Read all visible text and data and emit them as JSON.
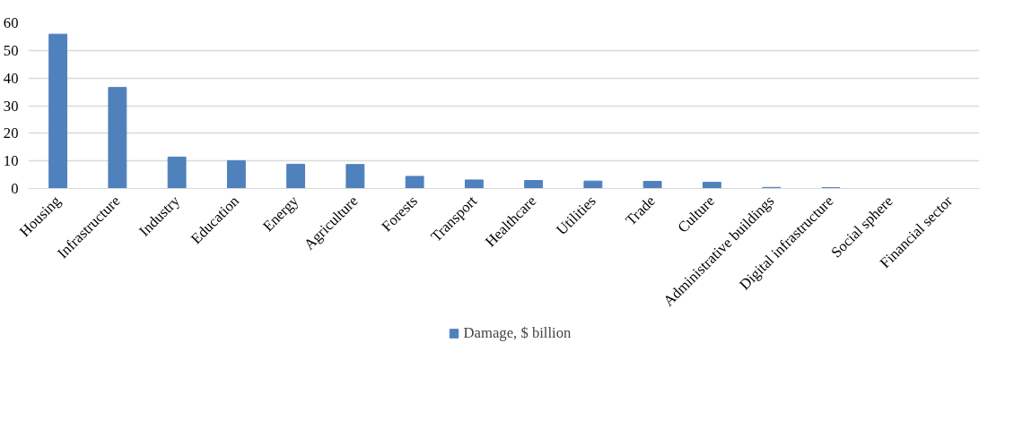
{
  "chart_data": {
    "type": "bar",
    "categories": [
      "Housing",
      "Infrastructure",
      "Industry",
      "Education",
      "Energy",
      "Agriculture",
      "Forests",
      "Transport",
      "Healthcare",
      "Utilities",
      "Trade",
      "Culture",
      "Administrative buildings",
      "Digital infrastructure",
      "Social sphere",
      "Financial sector"
    ],
    "series": [
      {
        "name": "Damage, $ billion",
        "color": "#4f81bd",
        "values": [
          55.9,
          36.6,
          11.4,
          10.1,
          8.8,
          8.7,
          4.4,
          3.1,
          2.9,
          2.7,
          2.6,
          2.3,
          0.4,
          0.3,
          0,
          0
        ]
      }
    ],
    "ylim": [
      0,
      60
    ],
    "yticks": [
      0,
      10,
      20,
      30,
      40,
      50,
      60
    ],
    "grid": "y",
    "legend": "bottom"
  }
}
